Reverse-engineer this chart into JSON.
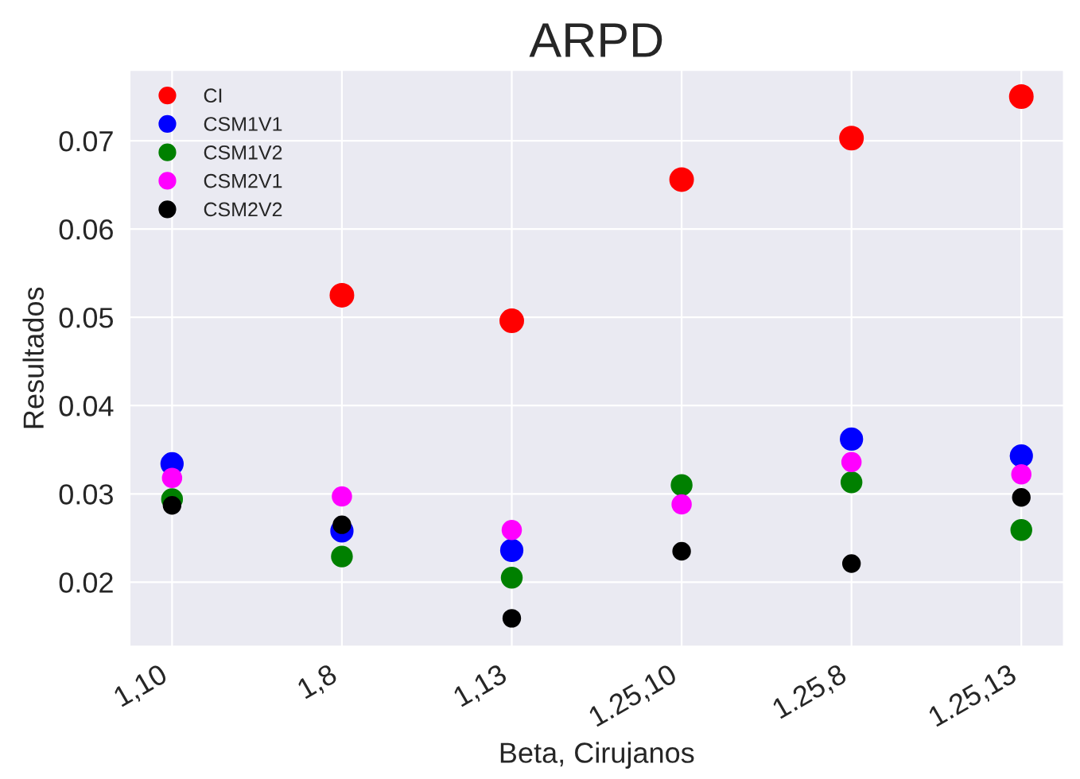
{
  "chart_data": {
    "type": "scatter",
    "title": "ARPD",
    "xlabel": "Beta, Cirujanos",
    "ylabel": "Resultados",
    "categories": [
      "1,10",
      "1,8",
      "1,13",
      "1.25,10",
      "1.25,8",
      "1.25,13"
    ],
    "series": [
      {
        "name": "CI",
        "color": "#ff0000",
        "values": [
          null,
          0.0525,
          0.0496,
          0.0656,
          0.0703,
          0.075
        ]
      },
      {
        "name": "CSM1V1",
        "color": "#0000ff",
        "values": [
          0.0334,
          0.0258,
          0.0236,
          null,
          0.0362,
          0.0343
        ]
      },
      {
        "name": "CSM1V2",
        "color": "#008000",
        "values": [
          0.0294,
          0.0229,
          0.0205,
          0.031,
          0.0313,
          0.0259
        ]
      },
      {
        "name": "CSM2V1",
        "color": "#ff00ff",
        "values": [
          0.0318,
          0.0297,
          0.0259,
          0.0288,
          0.0336,
          0.0322
        ]
      },
      {
        "name": "CSM2V2",
        "color": "#000000",
        "values": [
          0.0287,
          0.0265,
          0.0159,
          0.0235,
          0.0221,
          0.0296
        ]
      }
    ],
    "ylim": [
      0.0127,
      0.078
    ],
    "yticks": [
      0.02,
      0.03,
      0.04,
      0.05,
      0.06,
      0.07
    ],
    "grid": true,
    "legend": "top left",
    "marker": "circle"
  }
}
